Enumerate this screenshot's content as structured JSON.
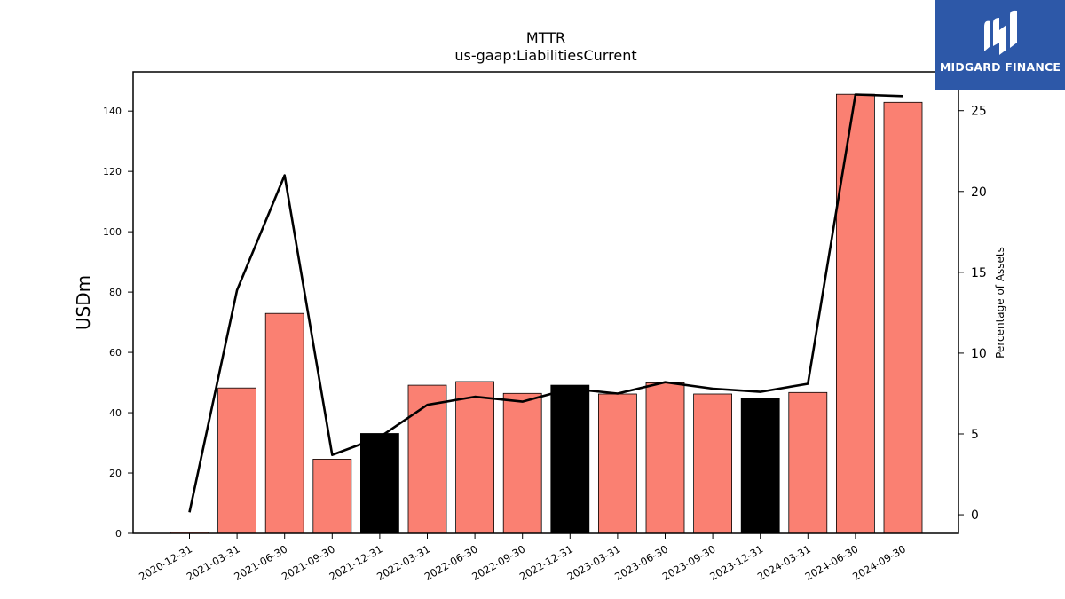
{
  "chart_data": {
    "type": "bar",
    "title": "MTTR",
    "subtitle": "us-gaap:LiabilitiesCurrent",
    "ylabel": "USDm",
    "y2label": "Percentage of Assets",
    "ylim": [
      0,
      153
    ],
    "y2lim": [
      -1.15,
      27.4
    ],
    "yticks": [
      0,
      20,
      40,
      60,
      80,
      100,
      120,
      140
    ],
    "y2ticks": [
      0,
      5,
      10,
      15,
      20,
      25
    ],
    "categories": [
      "2020-12-31",
      "2021-03-31",
      "2021-06-30",
      "2021-09-30",
      "2021-12-31",
      "2022-03-31",
      "2022-06-30",
      "2022-09-30",
      "2022-12-31",
      "2023-03-31",
      "2023-06-30",
      "2023-09-30",
      "2023-12-31",
      "2024-03-31",
      "2024-06-30",
      "2024-09-30"
    ],
    "series": [
      {
        "kind": "bar",
        "axis": "left",
        "values": [
          0.4,
          48.2,
          72.9,
          24.6,
          33.1,
          49.1,
          50.3,
          46.4,
          49.1,
          46.2,
          49.9,
          46.2,
          44.6,
          46.7,
          145.6,
          142.9
        ],
        "colors": [
          "#fa8072",
          "#fa8072",
          "#fa8072",
          "#fa8072",
          "#000000",
          "#fa8072",
          "#fa8072",
          "#fa8072",
          "#000000",
          "#fa8072",
          "#fa8072",
          "#fa8072",
          "#000000",
          "#fa8072",
          "#fa8072",
          "#fa8072"
        ]
      },
      {
        "kind": "line",
        "axis": "right",
        "color": "#000000",
        "values": [
          0.15,
          13.9,
          21.0,
          3.7,
          4.8,
          6.8,
          7.3,
          7.0,
          7.8,
          7.5,
          8.2,
          7.8,
          7.6,
          8.1,
          26.0,
          25.9
        ]
      }
    ],
    "grid": false
  },
  "logo": {
    "text": "MIDGARD FINANCE",
    "background": "#2d58a8"
  }
}
